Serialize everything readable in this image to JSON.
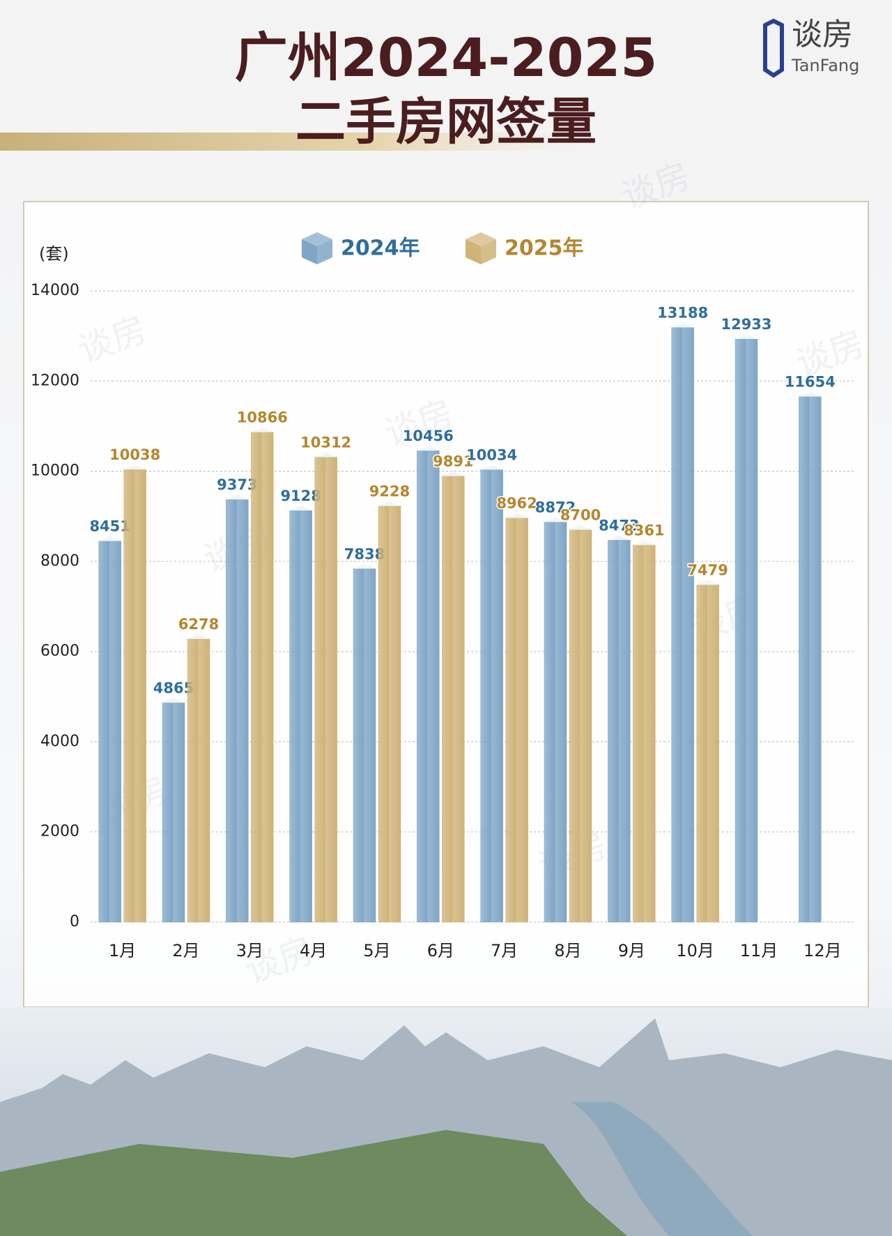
{
  "brand": {
    "name": "谈房",
    "name_en": "TanFang"
  },
  "chart_data": {
    "type": "bar",
    "title": "广州2024-2025",
    "subtitle": "二手房网签量",
    "y_label": "(套)",
    "categories": [
      "1月",
      "2月",
      "3月",
      "4月",
      "5月",
      "6月",
      "7月",
      "8月",
      "9月",
      "10月",
      "11月",
      "12月"
    ],
    "series": [
      {
        "name": "2024年",
        "color": "#7fa6c6",
        "label_color": "#2f6e9c",
        "values": [
          8451,
          4865,
          9373,
          9128,
          7838,
          10456,
          10034,
          8872,
          8473,
          13188,
          12933,
          11654
        ]
      },
      {
        "name": "2025年",
        "color": "#cfb377",
        "label_color": "#b5862d",
        "values": [
          10038,
          6278,
          10866,
          10312,
          9228,
          9891,
          8962,
          8700,
          8361,
          7479,
          null,
          null
        ]
      }
    ],
    "ylim": [
      0,
      14000
    ],
    "yticks": [
      0,
      2000,
      4000,
      6000,
      8000,
      10000,
      12000,
      14000
    ],
    "grid": true,
    "value_labels_shown": true
  }
}
